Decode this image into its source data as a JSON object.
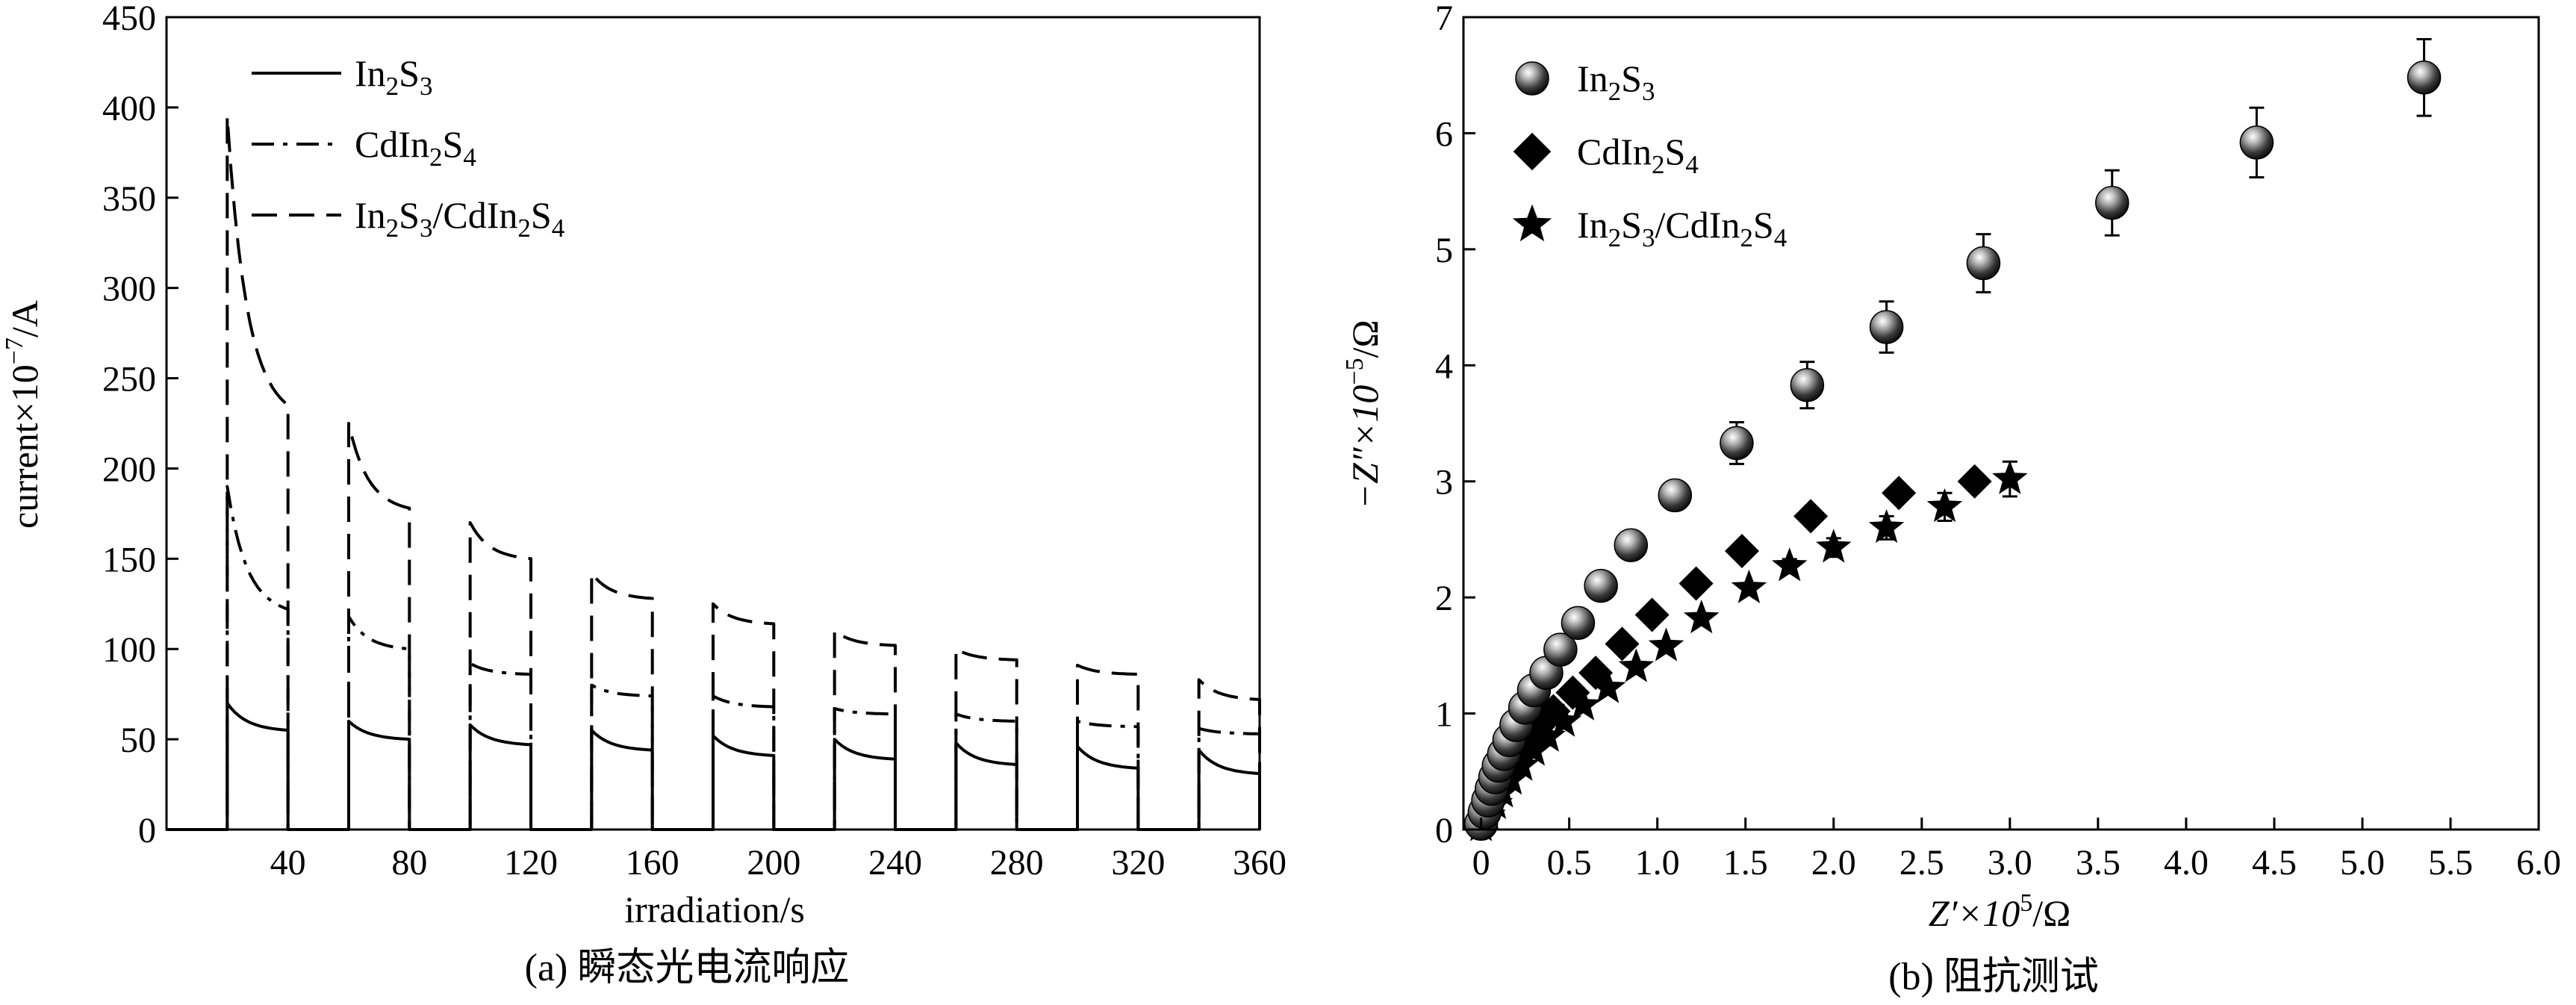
{
  "chart_data": [
    {
      "type": "line",
      "caption": "(a) 瞬态光电流响应",
      "xlabel": "irradiation/s",
      "ylabel_parts": {
        "base": "current×10",
        "exp": "−7",
        "unit": "/A"
      },
      "xlim": [
        0,
        360
      ],
      "ylim": [
        0,
        450
      ],
      "xticks": [
        40,
        80,
        120,
        160,
        200,
        240,
        280,
        320,
        360
      ],
      "yticks": [
        0,
        50,
        100,
        150,
        200,
        250,
        300,
        350,
        400,
        450
      ],
      "grid": false,
      "legend_position": "top-left",
      "light_on_intervals": [
        [
          20,
          40
        ],
        [
          60,
          80
        ],
        [
          100,
          120
        ],
        [
          140,
          160
        ],
        [
          180,
          200
        ],
        [
          220,
          240
        ],
        [
          260,
          280
        ],
        [
          300,
          320
        ],
        [
          340,
          360
        ]
      ],
      "series": [
        {
          "name": "In₂S₃",
          "legend": {
            "base": "In",
            "sub1": "2",
            "mid": "S",
            "sub2": "3",
            "rest": "",
            "sub3": ""
          },
          "dash": "solid",
          "start": [
            70,
            60,
            58,
            55,
            52,
            50,
            48,
            46,
            44
          ],
          "end": [
            55,
            50,
            47,
            44,
            41,
            39,
            36,
            34,
            31
          ]
        },
        {
          "name": "CdIn₂S₄",
          "legend": {
            "base": "CdIn",
            "sub1": "2",
            "mid": "S",
            "sub2": "4",
            "rest": "",
            "sub3": ""
          },
          "dash": "dashdot",
          "start": [
            190,
            118,
            92,
            80,
            74,
            67,
            64,
            60,
            56
          ],
          "end": [
            122,
            100,
            86,
            74,
            68,
            64,
            60,
            57,
            53
          ]
        },
        {
          "name": "In₂S₃/CdIn₂S₄",
          "legend": {
            "base": "In",
            "sub1": "2",
            "mid": "S",
            "sub2": "3",
            "rest": "/CdIn",
            "sub3": "2",
            "tail": "S",
            "sub4": "4"
          },
          "dash": "dashed",
          "start": [
            395,
            225,
            170,
            142,
            125,
            110,
            100,
            91,
            83
          ],
          "end": [
            235,
            178,
            150,
            128,
            114,
            102,
            94,
            86,
            72
          ]
        }
      ]
    },
    {
      "type": "scatter",
      "caption": "(b) 阻抗测试",
      "xlabel_parts": {
        "base": "Z′×10",
        "exp": "5",
        "unit": "/Ω"
      },
      "ylabel_parts": {
        "base": "−Z″×10",
        "exp": "−5",
        "unit": "/Ω"
      },
      "xlim": [
        -0.1,
        6.0
      ],
      "ylim": [
        0,
        7
      ],
      "xticks": [
        0,
        0.5,
        1.0,
        1.5,
        2.0,
        2.5,
        3.0,
        3.5,
        4.0,
        4.5,
        5.0,
        5.5,
        6.0
      ],
      "xticklabels": [
        "0",
        "0.5",
        "1.0",
        "1.5",
        "2.0",
        "2.5",
        "3.0",
        "3.5",
        "4.0",
        "4.5",
        "5.0",
        "5.5",
        "6.0"
      ],
      "yticks": [
        0,
        1,
        2,
        3,
        4,
        5,
        6,
        7
      ],
      "grid": false,
      "legend_position": "top-left",
      "series": [
        {
          "name": "In₂S₃",
          "marker": "sphere",
          "legend": {
            "base": "In",
            "sub1": "2",
            "mid": "S",
            "sub2": "3",
            "rest": "",
            "sub3": ""
          },
          "x": [
            0.0,
            0.02,
            0.04,
            0.06,
            0.08,
            0.1,
            0.13,
            0.16,
            0.2,
            0.25,
            0.3,
            0.37,
            0.45,
            0.55,
            0.68,
            0.85,
            1.1,
            1.45,
            1.85,
            2.3,
            2.85,
            3.58,
            4.4,
            5.35
          ],
          "y": [
            0.05,
            0.15,
            0.25,
            0.35,
            0.45,
            0.55,
            0.65,
            0.77,
            0.9,
            1.05,
            1.2,
            1.35,
            1.55,
            1.78,
            2.1,
            2.45,
            2.88,
            3.33,
            3.83,
            4.33,
            4.88,
            5.4,
            5.92,
            6.48
          ],
          "yerr": [
            0,
            0,
            0,
            0,
            0,
            0,
            0,
            0,
            0,
            0,
            0,
            0,
            0,
            0,
            0,
            0,
            0.12,
            0.18,
            0.2,
            0.22,
            0.25,
            0.28,
            0.3,
            0.33
          ]
        },
        {
          "name": "CdIn₂S₄",
          "marker": "diamond",
          "legend": {
            "base": "CdIn",
            "sub1": "2",
            "mid": "S",
            "sub2": "4",
            "rest": "",
            "sub3": ""
          },
          "x": [
            0.0,
            0.03,
            0.06,
            0.1,
            0.14,
            0.19,
            0.25,
            0.32,
            0.41,
            0.52,
            0.65,
            0.8,
            0.97,
            1.22,
            1.48,
            1.87,
            2.37,
            2.8
          ],
          "y": [
            0.05,
            0.15,
            0.25,
            0.37,
            0.5,
            0.62,
            0.75,
            0.88,
            1.02,
            1.18,
            1.35,
            1.6,
            1.85,
            2.12,
            2.4,
            2.7,
            2.9,
            3.0
          ],
          "yerr": []
        },
        {
          "name": "In₂S₃/CdIn₂S₄",
          "marker": "star",
          "legend": {
            "base": "In",
            "sub1": "2",
            "mid": "S",
            "sub2": "3",
            "rest": "/CdIn",
            "sub3": "2",
            "tail": "S",
            "sub4": "4"
          },
          "x": [
            0.0,
            0.04,
            0.08,
            0.12,
            0.17,
            0.23,
            0.3,
            0.38,
            0.47,
            0.58,
            0.72,
            0.88,
            1.05,
            1.25,
            1.52,
            1.75,
            2.0,
            2.3,
            2.63,
            3.0
          ],
          "y": [
            0.03,
            0.12,
            0.22,
            0.32,
            0.43,
            0.55,
            0.68,
            0.8,
            0.93,
            1.07,
            1.22,
            1.4,
            1.58,
            1.82,
            2.08,
            2.27,
            2.43,
            2.6,
            2.78,
            3.02
          ],
          "yerr": [
            0,
            0,
            0,
            0,
            0,
            0,
            0,
            0,
            0,
            0,
            0,
            0,
            0,
            0,
            0,
            0.06,
            0.08,
            0.1,
            0.12,
            0.15
          ]
        }
      ]
    }
  ]
}
